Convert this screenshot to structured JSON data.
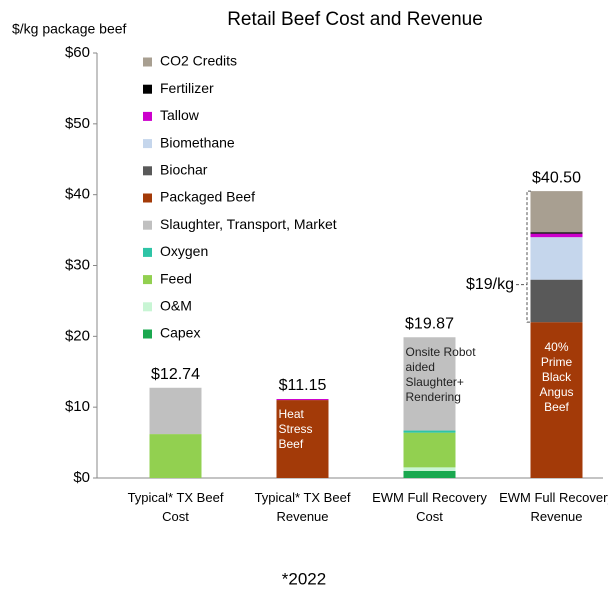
{
  "chart_data": {
    "type": "stacked_bar",
    "title": "Retail Beef Cost and Revenue",
    "ylabel": "$/kg package beef",
    "footnote": "*2022",
    "categories": [
      "Typical* TX Beef Cost",
      "Typical* TX Beef Revenue",
      "EWM Full Recovery Cost",
      "EWM Full Recovery Revenue"
    ],
    "ylim": [
      0,
      60
    ],
    "yticks": [
      {
        "value": 0,
        "label": "$0"
      },
      {
        "value": 10,
        "label": "$10"
      },
      {
        "value": 20,
        "label": "$20"
      },
      {
        "value": 30,
        "label": "$30"
      },
      {
        "value": 40,
        "label": "$40"
      },
      {
        "value": 50,
        "label": "$50"
      },
      {
        "value": 60,
        "label": "$60"
      }
    ],
    "series": [
      {
        "name": "Capex",
        "color": "#1aa84f",
        "values": [
          null,
          null,
          1.0,
          null
        ]
      },
      {
        "name": "O&M",
        "color": "#c8f5d4",
        "values": [
          null,
          null,
          0.5,
          null
        ]
      },
      {
        "name": "Feed",
        "color": "#92d050",
        "values": [
          6.2,
          null,
          4.9,
          null
        ]
      },
      {
        "name": "Oxygen",
        "color": "#2ec4a6",
        "values": [
          null,
          null,
          0.3,
          null
        ]
      },
      {
        "name": "Slaughter, Transport, Market",
        "color": "#c0c0c0",
        "values": [
          6.54,
          null,
          13.17,
          null
        ]
      },
      {
        "name": "Packaged Beef",
        "color": "#a33a08",
        "values": [
          null,
          11.0,
          null,
          22.0
        ]
      },
      {
        "name": "Biochar",
        "color": "#595959",
        "values": [
          null,
          null,
          null,
          6.0
        ]
      },
      {
        "name": "Biomethane",
        "color": "#c5d6ec",
        "values": [
          null,
          null,
          null,
          6.0
        ]
      },
      {
        "name": "Tallow",
        "color": "#cc00cc",
        "values": [
          null,
          0.15,
          null,
          0.5
        ]
      },
      {
        "name": "Fertilizer",
        "color": "#000000",
        "values": [
          null,
          null,
          null,
          0.2
        ]
      },
      {
        "name": "CO2 Credits",
        "color": "#a89f91",
        "values": [
          null,
          null,
          null,
          5.8
        ]
      }
    ],
    "totals": [
      12.74,
      11.15,
      19.87,
      40.5
    ],
    "total_labels": [
      "$12.74",
      "$11.15",
      "$19.87",
      "$40.50"
    ],
    "bar_notes": [
      null,
      "Heat Stress Beef",
      "Onsite Robot aided Slaughter+ Rendering",
      "40% Prime Black Angus Beef"
    ],
    "annotations": [
      {
        "text": "$19/kg",
        "range": [
          22,
          40.5
        ]
      }
    ]
  }
}
